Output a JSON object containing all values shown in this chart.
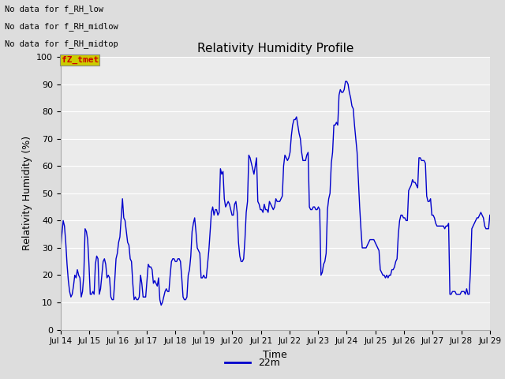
{
  "title": "Relativity Humidity Profile",
  "xlabel": "Time",
  "ylabel": "Relativity Humidity (%)",
  "ylim": [
    0,
    100
  ],
  "yticks": [
    0,
    10,
    20,
    30,
    40,
    50,
    60,
    70,
    80,
    90,
    100
  ],
  "xtick_labels": [
    "Jul 14",
    "Jul 15",
    "Jul 16",
    "Jul 17",
    "Jul 18",
    "Jul 19",
    "Jul 20",
    "Jul 21",
    "Jul 22",
    "Jul 23",
    "Jul 24",
    "Jul 25",
    "Jul 26",
    "Jul 27",
    "Jul 28",
    "Jul 29"
  ],
  "legend_label": "22m",
  "line_color": "#0000cc",
  "figure_bg_color": "#dddddd",
  "plot_bg_color": "#ebebeb",
  "no_data_texts": [
    "No data for f_RH_low",
    "No data for f_RH_midlow",
    "No data for f_RH_midtop"
  ],
  "fz_tmet_label": "fZ_tmet",
  "fz_tmet_color": "#cc0000",
  "fz_tmet_bg": "#cccc00",
  "rh_values": [
    29,
    35,
    40,
    38,
    32,
    24,
    18,
    14,
    12,
    13,
    16,
    20,
    19,
    22,
    20,
    19,
    12,
    14,
    20,
    37,
    36,
    33,
    24,
    13,
    13,
    14,
    13,
    24,
    27,
    26,
    13,
    15,
    20,
    25,
    26,
    24,
    19,
    20,
    19,
    12,
    11,
    11,
    18,
    26,
    28,
    32,
    34,
    41,
    48,
    41,
    40,
    36,
    32,
    31,
    26,
    25,
    17,
    11,
    12,
    11,
    11,
    12,
    20,
    17,
    12,
    12,
    12,
    18,
    24,
    23,
    23,
    22,
    17,
    18,
    17,
    16,
    19,
    11,
    9,
    10,
    12,
    14,
    15,
    14,
    14,
    20,
    25,
    26,
    26,
    25,
    25,
    26,
    26,
    25,
    19,
    12,
    11,
    11,
    12,
    20,
    22,
    27,
    36,
    39,
    41,
    36,
    30,
    29,
    28,
    19,
    19,
    20,
    19,
    19,
    24,
    29,
    36,
    43,
    45,
    42,
    44,
    44,
    42,
    43,
    59,
    57,
    58,
    48,
    45,
    46,
    47,
    46,
    44,
    42,
    42,
    46,
    47,
    43,
    32,
    27,
    25,
    25,
    26,
    33,
    43,
    47,
    64,
    63,
    61,
    59,
    57,
    60,
    63,
    47,
    46,
    44,
    44,
    43,
    46,
    44,
    44,
    43,
    47,
    46,
    45,
    44,
    45,
    48,
    47,
    47,
    47,
    48,
    49,
    60,
    64,
    63,
    62,
    63,
    65,
    71,
    75,
    77,
    77,
    78,
    75,
    72,
    70,
    65,
    62,
    62,
    62,
    64,
    65,
    45,
    44,
    44,
    45,
    45,
    44,
    44,
    45,
    44,
    20,
    21,
    24,
    25,
    28,
    44,
    48,
    50,
    61,
    65,
    75,
    75,
    76,
    75,
    86,
    88,
    87,
    87,
    88,
    91,
    91,
    90,
    87,
    85,
    82,
    81,
    75,
    70,
    65,
    55,
    45,
    37,
    30,
    30,
    30,
    30,
    31,
    32,
    33,
    33,
    33,
    33,
    32,
    31,
    30,
    29,
    22,
    21,
    20,
    20,
    19,
    20,
    19,
    20,
    20,
    22,
    22,
    23,
    25,
    26,
    35,
    40,
    42,
    42,
    41,
    41,
    40,
    40,
    51,
    52,
    53,
    55,
    54,
    54,
    53,
    52,
    63,
    63,
    62,
    62,
    62,
    61,
    49,
    47,
    47,
    48,
    42,
    42,
    41,
    39,
    38,
    38,
    38,
    38,
    38,
    38,
    37,
    38,
    38,
    39,
    13,
    13,
    14,
    14,
    14,
    13,
    13,
    13,
    13,
    14,
    14,
    14,
    13,
    15,
    13,
    13,
    22,
    37,
    38,
    39,
    40,
    41,
    41,
    42,
    43,
    42,
    41,
    38,
    37,
    37,
    37,
    42
  ]
}
